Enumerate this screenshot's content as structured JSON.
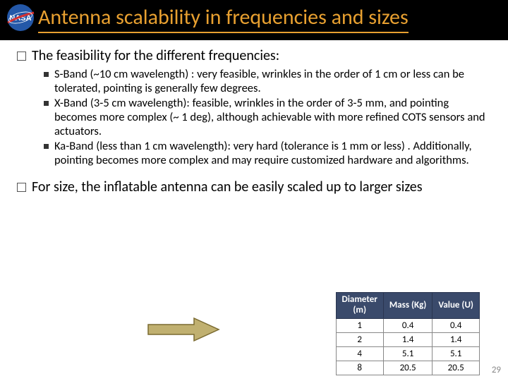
{
  "title": "Antenna scalability in frequencies and sizes",
  "bullet1": "The feasibility for the different frequencies:",
  "sub1": "S-Band (~10 cm wavelength) : very feasible, wrinkles in the order of 1 cm or less can be tolerated, pointing is generally few degrees.",
  "sub2": "X-Band (3-5 cm wavelength): feasible, wrinkles in the order of 3-5 mm, and pointing becomes more complex (~ 1 deg), although achievable with more refined COTS sensors and actuators.",
  "sub3": "Ka-Band (less than 1 cm wavelength): very hard (tolerance is 1 mm or less) . Additionally, pointing becomes more complex and may require customized hardware and algorithms.",
  "bullet2": "For size, the inflatable antenna can be easily scaled up to larger sizes",
  "table": {
    "headers": [
      "Diameter (m)",
      "Mass (Kg)",
      "Value (U)"
    ],
    "rows": [
      [
        "1",
        "0.4",
        "0.4"
      ],
      [
        "2",
        "1.4",
        "1.4"
      ],
      [
        "4",
        "5.1",
        "5.1"
      ],
      [
        "8",
        "20.5",
        "20.5"
      ]
    ],
    "header_bg": "#3a4a6b",
    "header_fg": "#ffffff"
  },
  "arrow": {
    "fill": "#c0b070",
    "stroke": "#7a6a30"
  },
  "logo": {
    "circle_fill": "#2458a8",
    "text": "NASA",
    "swoosh": "#d43030"
  },
  "page_number": "29"
}
